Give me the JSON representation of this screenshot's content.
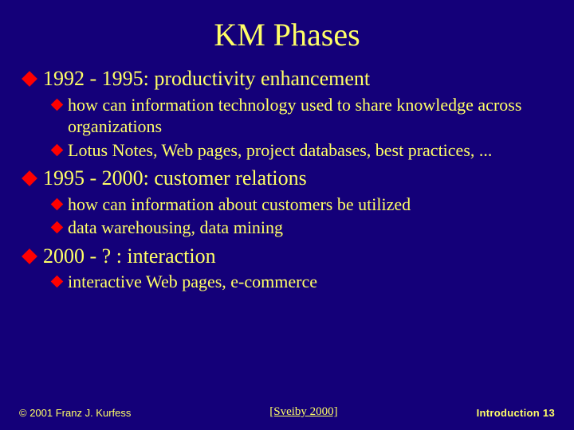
{
  "colors": {
    "background": "#140079",
    "title": "#ffff66",
    "body_text": "#ffff66",
    "bullet": "#ff0000",
    "footer_left": "#ffff66",
    "footer_center": "#ffff66",
    "footer_right": "#ffff66"
  },
  "title": "KM Phases",
  "phases": {
    "p1": {
      "heading": "1992 - 1995: productivity enhancement",
      "sub1": "how can information technology used to share knowledge across organizations",
      "sub2": "Lotus Notes, Web pages, project databases, best practices, ..."
    },
    "p2": {
      "heading": "1995 - 2000: customer relations",
      "sub1": "how can information about customers be utilized",
      "sub2": "data warehousing, data mining"
    },
    "p3": {
      "heading": "2000 - ? : interaction",
      "sub1": "interactive Web pages, e-commerce"
    }
  },
  "footer": {
    "left": "© 2001 Franz J. Kurfess",
    "center": "[Sveiby 2000]",
    "right": "Introduction  13"
  }
}
